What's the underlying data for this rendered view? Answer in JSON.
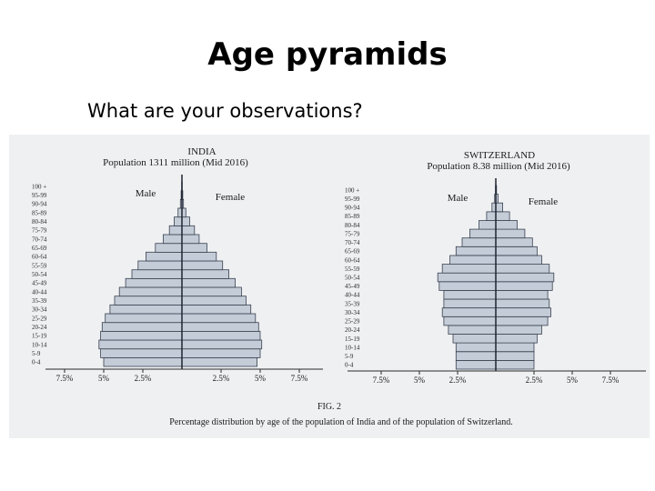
{
  "slide": {
    "title": "Age pyramids",
    "subtitle": "What are your observations?"
  },
  "figure": {
    "fig_label": "FIG. 2",
    "caption": "Percentage distribution by age of the population of India and of the population of Switzerland."
  },
  "chart_data": [
    {
      "type": "bar",
      "orientation": "horizontal",
      "title": "INDIA",
      "subtitle": "Population 1311 million (Mid 2016)",
      "left_label": "Male",
      "right_label": "Female",
      "categories": [
        "0-4",
        "5-9",
        "10-14",
        "15-19",
        "20-24",
        "25-29",
        "30-34",
        "35-39",
        "40-44",
        "45-49",
        "50-54",
        "55-59",
        "60-64",
        "65-69",
        "70-74",
        "75-79",
        "80-84",
        "85-89",
        "90-94",
        "95-99",
        "100 +"
      ],
      "series": [
        {
          "name": "Male",
          "values": [
            5.0,
            5.2,
            5.3,
            5.2,
            5.1,
            4.9,
            4.6,
            4.3,
            4.0,
            3.6,
            3.2,
            2.8,
            2.3,
            1.7,
            1.2,
            0.8,
            0.5,
            0.25,
            0.1,
            0.05,
            0.02
          ]
        },
        {
          "name": "Female",
          "values": [
            4.8,
            5.0,
            5.1,
            5.0,
            4.9,
            4.7,
            4.4,
            4.1,
            3.8,
            3.4,
            3.0,
            2.6,
            2.2,
            1.6,
            1.1,
            0.8,
            0.5,
            0.25,
            0.1,
            0.05,
            0.02
          ]
        }
      ],
      "xticks": [
        "7.5%",
        "5%",
        "2.5%",
        "2.5%",
        "5%",
        "7.5%"
      ],
      "xlim": [
        -7.5,
        7.5
      ]
    },
    {
      "type": "bar",
      "orientation": "horizontal",
      "title": "SWITZERLAND",
      "subtitle": "Population 8.38 million (Mid 2016)",
      "left_label": "Male",
      "right_label": "Female",
      "categories": [
        "0-4",
        "5-9",
        "10-14",
        "15-19",
        "20-24",
        "25-29",
        "30-34",
        "35-39",
        "40-44",
        "45-49",
        "50-54",
        "55-59",
        "60-64",
        "65-69",
        "70-74",
        "75-79",
        "80-84",
        "85-89",
        "90-94",
        "95-99",
        "100 +"
      ],
      "series": [
        {
          "name": "Male",
          "values": [
            2.6,
            2.6,
            2.6,
            2.8,
            3.1,
            3.4,
            3.5,
            3.4,
            3.4,
            3.7,
            3.8,
            3.5,
            3.0,
            2.6,
            2.2,
            1.7,
            1.1,
            0.6,
            0.25,
            0.08,
            0.02
          ]
        },
        {
          "name": "Female",
          "values": [
            2.5,
            2.5,
            2.5,
            2.7,
            3.0,
            3.4,
            3.6,
            3.5,
            3.4,
            3.7,
            3.8,
            3.5,
            3.0,
            2.7,
            2.4,
            1.9,
            1.4,
            0.9,
            0.45,
            0.15,
            0.05
          ]
        }
      ],
      "xticks": [
        "7.5%",
        "5%",
        "2.5%",
        "2.5%",
        "5%",
        "7.5%"
      ],
      "xlim": [
        -7.5,
        7.5
      ]
    }
  ]
}
